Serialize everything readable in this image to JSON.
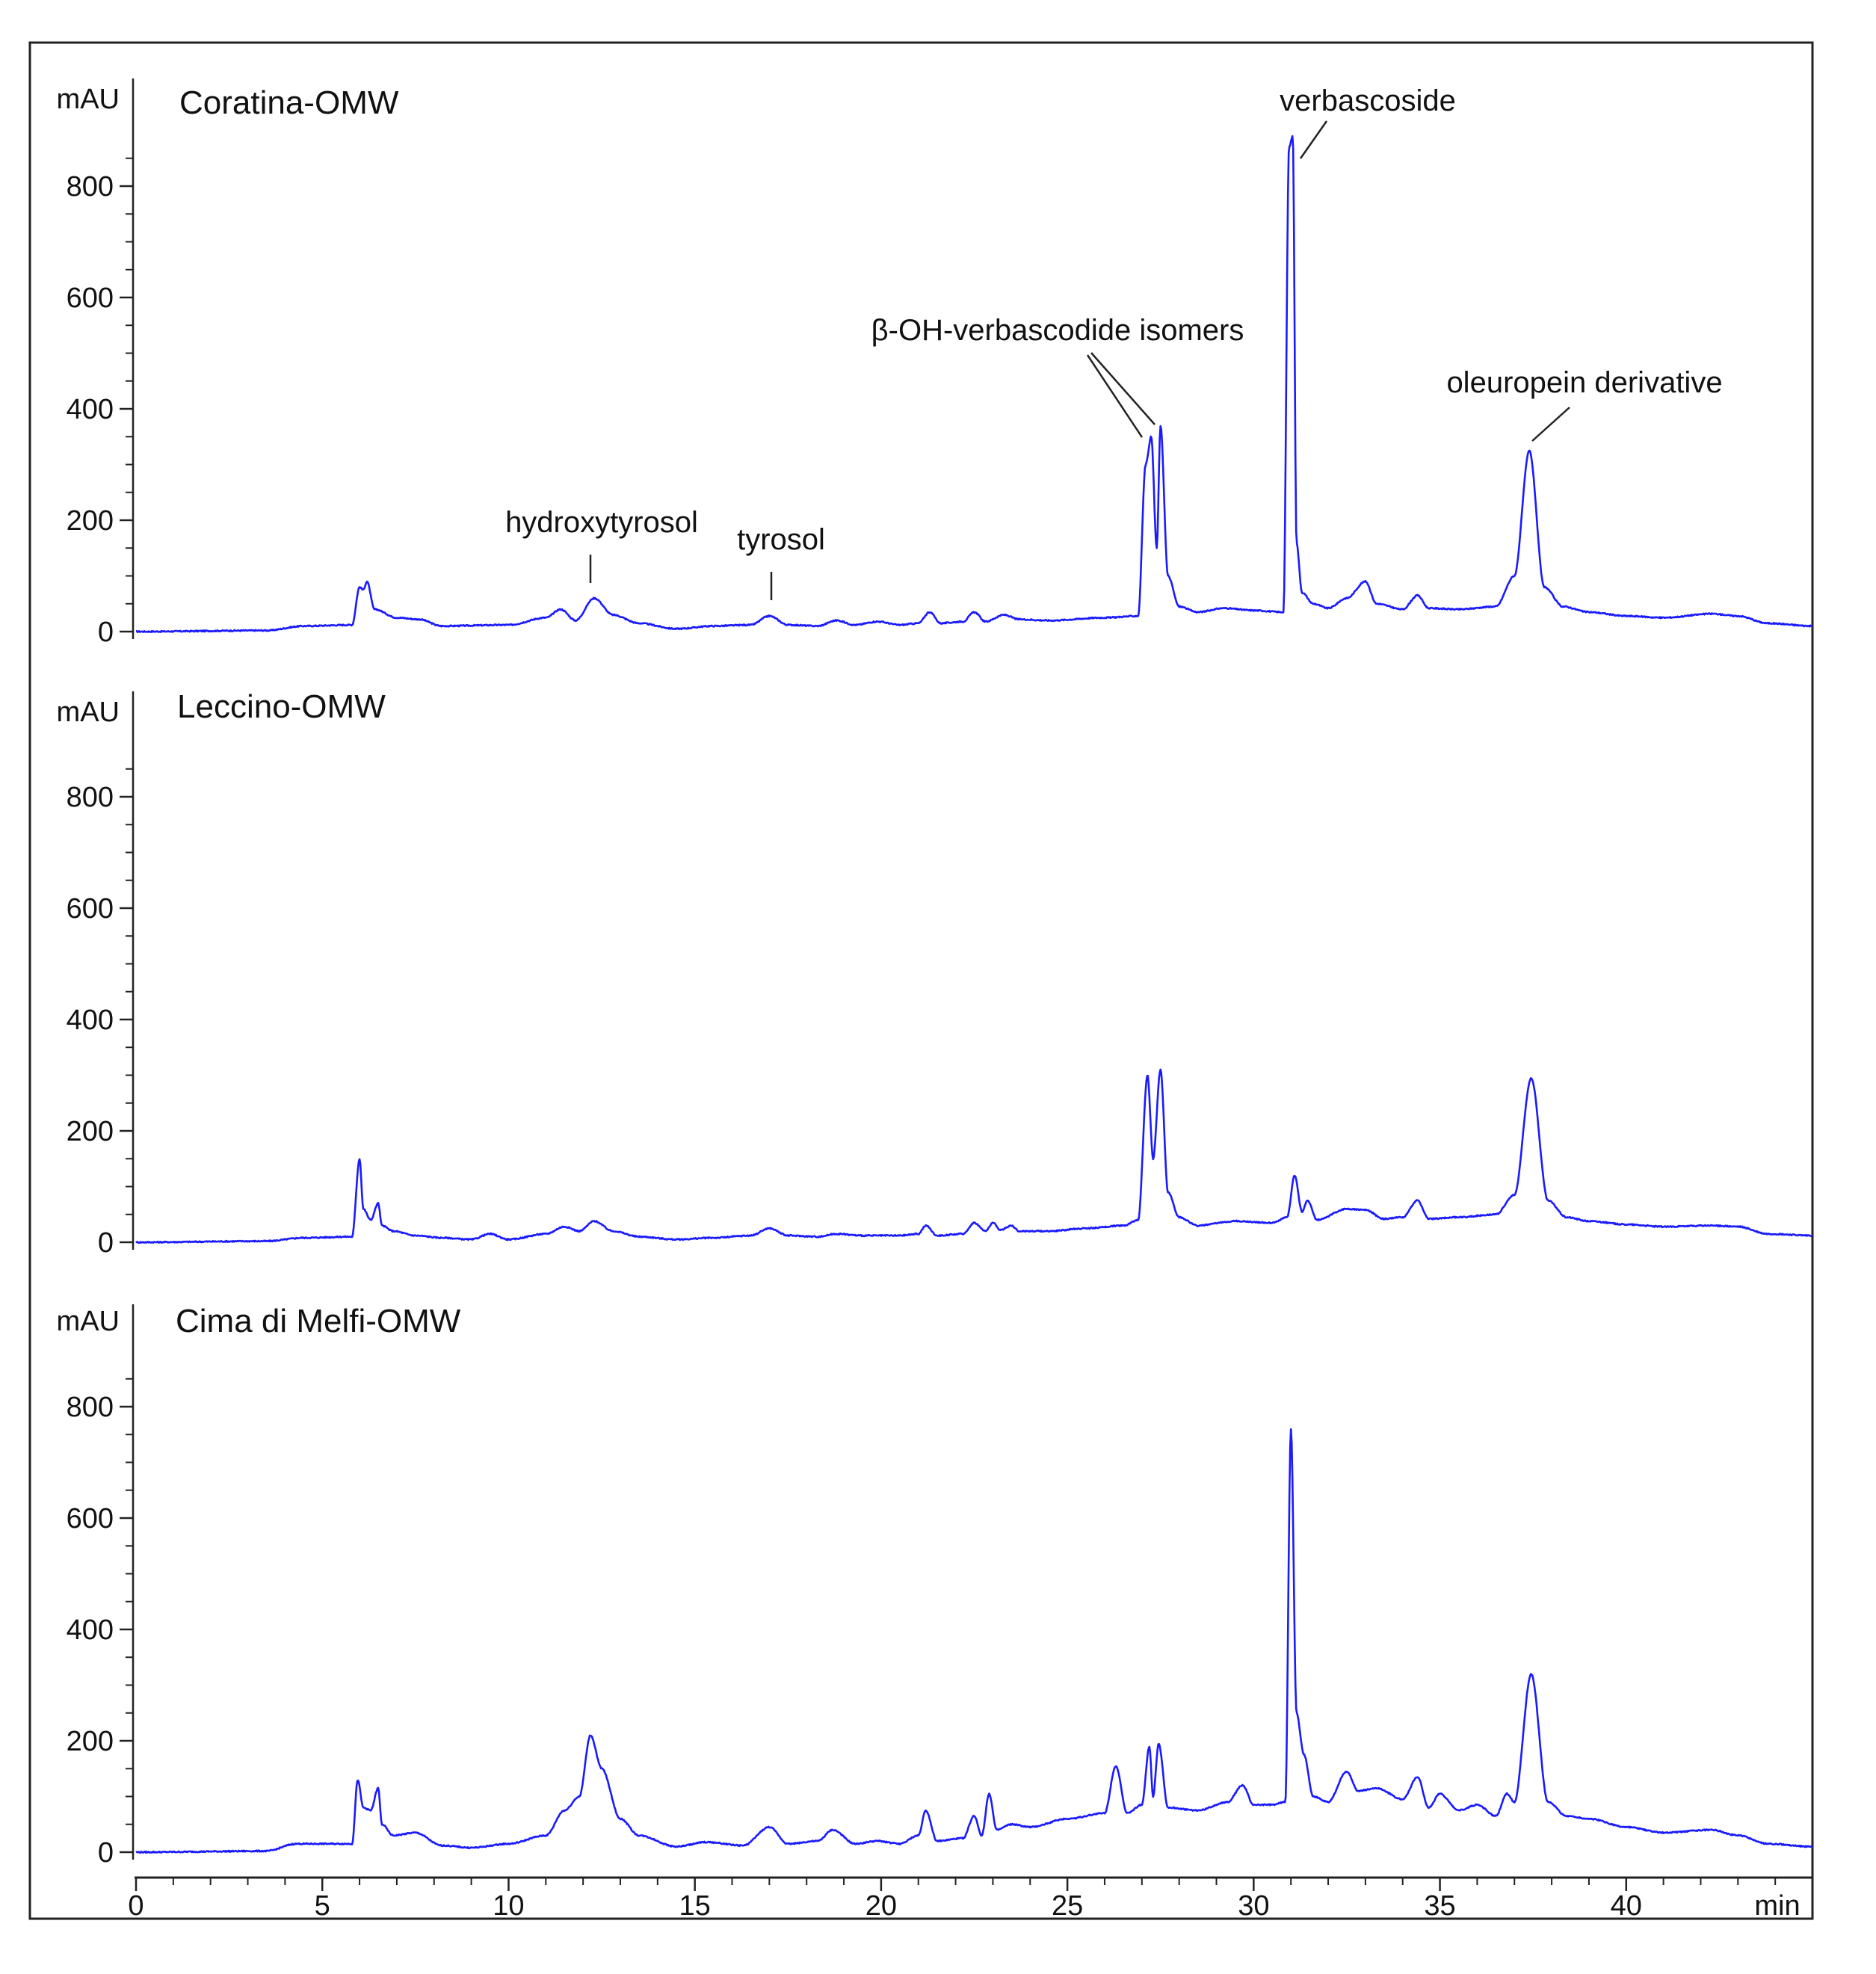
{
  "chart_data": {
    "type": "line",
    "xlabel": "min",
    "x_ticks": [
      0,
      5,
      10,
      15,
      20,
      25,
      30,
      35,
      40
    ],
    "xlim": [
      0,
      45
    ],
    "line_color": "#1a1aff",
    "panels": [
      {
        "title": "Coratina-OMW",
        "ylabel": "mAU",
        "ylim": [
          0,
          900
        ],
        "y_ticks": [
          0,
          200,
          400,
          600,
          800
        ],
        "series": {
          "x": [
            0,
            3.5,
            4.5,
            5.8,
            6.0,
            6.1,
            6.2,
            6.4,
            7.0,
            7.6,
            8.2,
            10.0,
            11.0,
            11.4,
            11.8,
            12.3,
            12.8,
            13.5,
            14.5,
            15.5,
            16.5,
            17.0,
            17.5,
            18.3,
            18.8,
            19.3,
            19.9,
            20.5,
            21.0,
            21.3,
            21.6,
            22.2,
            22.5,
            22.8,
            23.3,
            23.7,
            24.5,
            26.0,
            26.9,
            27.1,
            27.25,
            27.4,
            27.5,
            27.7,
            28.0,
            28.5,
            29.2,
            30.0,
            30.8,
            30.95,
            31.05,
            31.15,
            31.3,
            31.6,
            32.0,
            32.5,
            33.0,
            33.3,
            34.0,
            34.4,
            34.7,
            35.5,
            36.5,
            37.0,
            37.4,
            37.8,
            38.3,
            39.0,
            40.0,
            41.0,
            42.3,
            43.0,
            43.8,
            45.0
          ],
          "y": [
            0,
            2,
            10,
            12,
            80,
            75,
            90,
            40,
            25,
            22,
            10,
            12,
            25,
            40,
            20,
            60,
            30,
            15,
            5,
            10,
            12,
            28,
            12,
            10,
            20,
            12,
            18,
            12,
            15,
            35,
            15,
            18,
            35,
            18,
            30,
            22,
            20,
            25,
            28,
            300,
            350,
            150,
            370,
            100,
            45,
            35,
            42,
            38,
            35,
            870,
            890,
            160,
            70,
            50,
            42,
            60,
            90,
            50,
            40,
            65,
            42,
            40,
            45,
            100,
            325,
            80,
            45,
            35,
            28,
            25,
            32,
            28,
            15,
            10
          ]
        },
        "annotations": [
          {
            "text": "hydroxytyrosol",
            "x": 12.3
          },
          {
            "text": "tyrosol",
            "x": 17.0
          },
          {
            "text": "β-OH-verbascodide isomers",
            "x": [
              27.1,
              27.4
            ]
          },
          {
            "text": "verbascoside",
            "x": 31.05
          },
          {
            "text": "oleuropein derivative",
            "x": 37.4
          }
        ]
      },
      {
        "title": "Leccino-OMW",
        "ylabel": "mAU",
        "ylim": [
          0,
          900
        ],
        "y_ticks": [
          0,
          200,
          400,
          600,
          800
        ],
        "series": {
          "x": [
            0,
            3.5,
            4.5,
            5.8,
            6.0,
            6.1,
            6.3,
            6.5,
            6.6,
            6.9,
            7.5,
            8.2,
            9.0,
            9.5,
            10.0,
            11.0,
            11.5,
            11.9,
            12.3,
            12.8,
            13.5,
            14.5,
            15.5,
            16.5,
            17.0,
            17.5,
            18.3,
            18.8,
            19.5,
            20.5,
            21.0,
            21.2,
            21.5,
            22.2,
            22.5,
            22.8,
            23.0,
            23.2,
            23.5,
            23.7,
            24.5,
            25.5,
            26.5,
            26.9,
            27.15,
            27.3,
            27.5,
            27.7,
            28.0,
            28.5,
            29.5,
            30.5,
            30.9,
            31.1,
            31.3,
            31.45,
            31.7,
            32.5,
            33.0,
            33.5,
            34.0,
            34.4,
            34.7,
            35.5,
            36.5,
            37.0,
            37.45,
            37.9,
            38.4,
            39.0,
            40.0,
            41.0,
            42.3,
            43.0,
            43.8,
            45.0
          ],
          "y": [
            0,
            2,
            8,
            10,
            150,
            60,
            40,
            70,
            30,
            20,
            12,
            8,
            5,
            15,
            5,
            15,
            28,
            20,
            38,
            20,
            10,
            5,
            8,
            12,
            25,
            12,
            10,
            15,
            12,
            12,
            15,
            30,
            12,
            15,
            35,
            20,
            35,
            22,
            30,
            20,
            20,
            25,
            30,
            40,
            300,
            150,
            310,
            90,
            45,
            30,
            38,
            35,
            45,
            120,
            55,
            75,
            40,
            60,
            58,
            42,
            45,
            75,
            42,
            45,
            50,
            85,
            295,
            75,
            45,
            38,
            32,
            28,
            30,
            28,
            15,
            12
          ]
        },
        "annotations": []
      },
      {
        "title": "Cima di Melfi-OMW",
        "ylabel": "mAU",
        "ylim": [
          0,
          900
        ],
        "y_ticks": [
          0,
          200,
          400,
          600,
          800
        ],
        "series": {
          "x": [
            0,
            3.5,
            4.3,
            5.0,
            5.8,
            5.95,
            6.1,
            6.3,
            6.5,
            6.6,
            6.9,
            7.5,
            8.2,
            9.0,
            10.0,
            11.0,
            11.5,
            11.9,
            12.2,
            12.5,
            13.0,
            13.5,
            14.5,
            15.3,
            16.3,
            17.0,
            17.5,
            18.3,
            18.7,
            19.3,
            19.9,
            20.5,
            21.0,
            21.2,
            21.5,
            22.2,
            22.5,
            22.7,
            22.9,
            23.1,
            23.5,
            24.0,
            25.0,
            26.0,
            26.3,
            26.6,
            27.0,
            27.2,
            27.3,
            27.45,
            27.7,
            28.5,
            29.3,
            29.7,
            30.0,
            30.5,
            30.85,
            31.0,
            31.15,
            31.35,
            31.6,
            32.0,
            32.5,
            32.8,
            33.3,
            34.0,
            34.4,
            34.7,
            35.0,
            35.5,
            36.0,
            36.5,
            36.8,
            37.0,
            37.45,
            37.9,
            38.4,
            39.0,
            40.0,
            41.0,
            42.3,
            43.0,
            43.8,
            45.0
          ],
          "y": [
            0,
            2,
            15,
            15,
            15,
            130,
            80,
            75,
            115,
            50,
            30,
            35,
            12,
            8,
            15,
            30,
            75,
            100,
            210,
            150,
            60,
            30,
            10,
            18,
            12,
            45,
            15,
            20,
            40,
            15,
            20,
            15,
            30,
            75,
            20,
            25,
            65,
            30,
            105,
            40,
            50,
            45,
            60,
            70,
            155,
            70,
            85,
            190,
            100,
            195,
            80,
            75,
            90,
            120,
            85,
            85,
            90,
            760,
            250,
            175,
            100,
            90,
            145,
            110,
            115,
            95,
            135,
            80,
            105,
            75,
            85,
            65,
            105,
            90,
            320,
            90,
            65,
            60,
            45,
            35,
            40,
            30,
            15,
            10
          ]
        },
        "annotations": []
      }
    ]
  }
}
